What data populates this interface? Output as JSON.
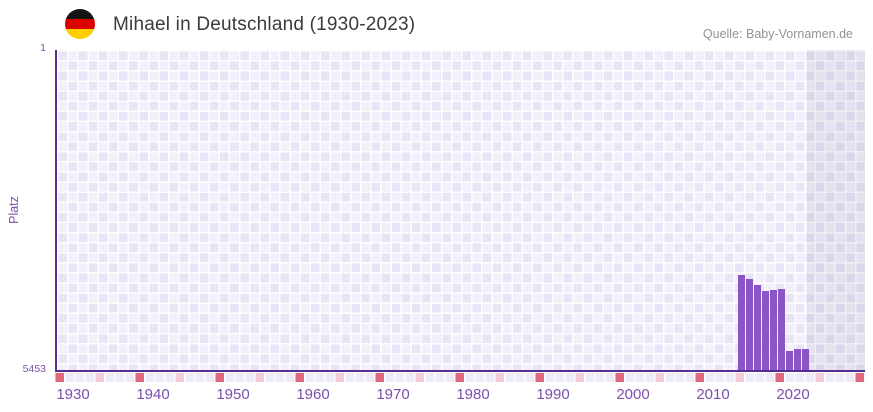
{
  "header": {
    "title": "Mihael in Deutschland (1930-2023)",
    "source": "Quelle: Baby-Vornamen.de",
    "flag": "germany-flag"
  },
  "chart_data": {
    "type": "bar",
    "title": "Mihael in Deutschland (1930-2023)",
    "xlabel": "",
    "ylabel": "Platz",
    "y_axis": {
      "top_tick": "1",
      "bottom_tick": "5453",
      "min": 1,
      "max": 5453,
      "inverted": true
    },
    "x_ticks": [
      "1930",
      "1940",
      "1950",
      "1960",
      "1970",
      "1980",
      "1990",
      "2000",
      "2010",
      "2020"
    ],
    "x_tick_start_year": 1930,
    "x_tick_step_years": 10,
    "x_range_years": [
      1928,
      2029
    ],
    "grid": "checkered",
    "legend_position": "none",
    "series": [
      {
        "name": "Platz",
        "points": [
          {
            "year": 2013,
            "rank": 3835
          },
          {
            "year": 2014,
            "rank": 3905
          },
          {
            "year": 2015,
            "rank": 4005
          },
          {
            "year": 2016,
            "rank": 4105
          },
          {
            "year": 2017,
            "rank": 4090
          },
          {
            "year": 2018,
            "rank": 4075
          },
          {
            "year": 2019,
            "rank": 5130
          },
          {
            "year": 2020,
            "rank": 5095
          },
          {
            "year": 2021,
            "rank": 5095
          }
        ]
      }
    ],
    "no_data_band_years": [
      2022,
      2029
    ],
    "colors": {
      "bar": "#8a56c7",
      "axis": "#562e91",
      "tick-label": "#7b4fad",
      "checker-dark": "#e9e4f6",
      "checker-light": "#f3f0fb",
      "band-overlay": "rgba(90,80,120,0.09)",
      "strip-red": "#e1697b",
      "strip-pink": "#f3ccd8",
      "strip-light": "#efeaf8",
      "title-text": "#3b3b3b",
      "source-text": "#939393",
      "flag-black": "#141414",
      "flag-red": "#dd0000",
      "flag-gold": "#ffce00"
    }
  }
}
